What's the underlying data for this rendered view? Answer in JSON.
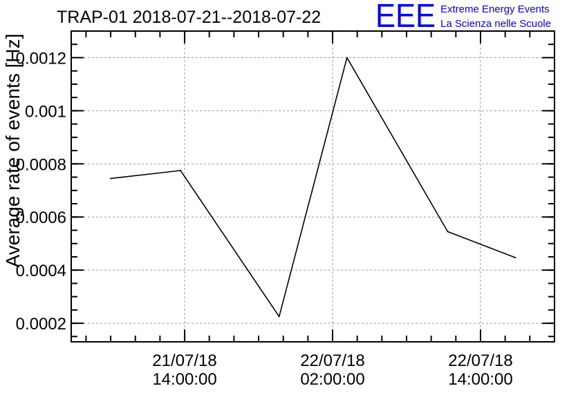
{
  "title": "TRAP-01 2018-07-21--2018-07-22",
  "logo": {
    "mark": "EEE",
    "line1": "Extreme Energy Events",
    "line2": "La Scienza nelle Scuole",
    "color": "#0000ff"
  },
  "chart_data": {
    "type": "line",
    "title": "TRAP-01 2018-07-21--2018-07-22",
    "xlabel": "",
    "ylabel": "Average rate of events [Hz]",
    "xlim": [
      "2018-07-21T04:48:00",
      "2018-07-22T20:00:00"
    ],
    "ylim": [
      0.00013,
      0.0013
    ],
    "grid": true,
    "line_color": "#000000",
    "grid_color": "#999999",
    "x_ticks": [
      {
        "at": "2018-07-21T14:00:00",
        "line1": "21/07/18",
        "line2": "14:00:00"
      },
      {
        "at": "2018-07-22T02:00:00",
        "line1": "22/07/18",
        "line2": "02:00:00"
      },
      {
        "at": "2018-07-22T14:00:00",
        "line1": "22/07/18",
        "line2": "14:00:00"
      }
    ],
    "y_ticks": [
      {
        "value": 0.0002,
        "label": "0.0002"
      },
      {
        "value": 0.0004,
        "label": "0.0004"
      },
      {
        "value": 0.0006,
        "label": "0.0006"
      },
      {
        "value": 0.0008,
        "label": "0.0008"
      },
      {
        "value": 0.001,
        "label": "0.001"
      },
      {
        "value": 0.0012,
        "label": "0.0012"
      }
    ],
    "series": [
      {
        "points": [
          {
            "x": "2018-07-21T08:00:00",
            "y": 0.000745
          },
          {
            "x": "2018-07-21T13:40:00",
            "y": 0.000775
          },
          {
            "x": "2018-07-21T21:40:00",
            "y": 0.000225
          },
          {
            "x": "2018-07-22T03:10:00",
            "y": 0.0012
          },
          {
            "x": "2018-07-22T11:20:00",
            "y": 0.000545
          },
          {
            "x": "2018-07-22T16:50:00",
            "y": 0.000447
          }
        ]
      }
    ]
  }
}
